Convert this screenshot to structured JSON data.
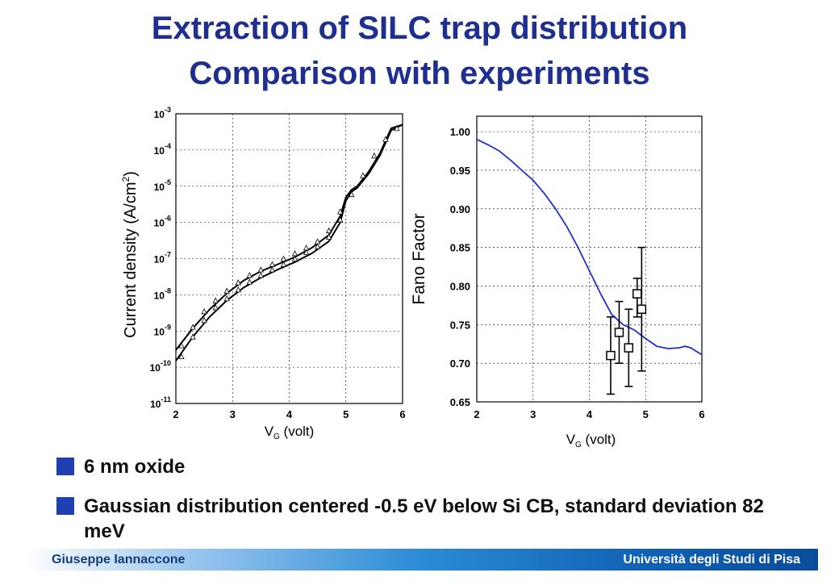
{
  "title": {
    "line1": "Extraction of SILC trap distribution",
    "line2": "Comparison with experiments"
  },
  "bullets": [
    "6 nm oxide",
    "Gaussian distribution centered -0.5 eV below Si CB, standard deviation 82 meV"
  ],
  "footer": {
    "author": "Giuseppe Iannaccone",
    "institution": "Università degli Studi di Pisa",
    "colors": {
      "bar_start": "#ffffff",
      "bar_end": "#0a4c9b"
    }
  },
  "colors": {
    "title": "#1f2f8f",
    "bullet": "#1f3fb3",
    "fano_curve": "#1f2fd0"
  },
  "chart_data": [
    {
      "type": "line",
      "xlabel": "V_G (volt)",
      "ylabel": "Current density (A/cm²)",
      "xlim": [
        2,
        6
      ],
      "ylim": [
        1e-11,
        0.001
      ],
      "yscale": "log",
      "x_ticks": [
        "2",
        "3",
        "4",
        "5",
        "6"
      ],
      "y_ticks": [
        {
          "base": "10",
          "exp": "-3",
          "value": 0.001
        },
        {
          "base": "10",
          "exp": "-4",
          "value": 0.0001
        },
        {
          "base": "10",
          "exp": "-5",
          "value": 1e-05
        },
        {
          "base": "10",
          "exp": "-6",
          "value": 1e-06
        },
        {
          "base": "10",
          "exp": "-7",
          "value": 1e-07
        },
        {
          "base": "10",
          "exp": "-8",
          "value": 1e-08
        },
        {
          "base": "10",
          "exp": "-9",
          "value": 1e-09
        },
        {
          "base": "10",
          "exp": "-10",
          "value": 1e-10
        },
        {
          "base": "10",
          "exp": "-11",
          "value": 1e-11
        }
      ],
      "series": [
        {
          "style": "solid",
          "x": [
            2.0,
            2.3,
            2.6,
            2.9,
            3.2,
            3.5,
            3.8,
            4.1,
            4.4,
            4.7,
            4.9,
            5.0,
            5.1,
            5.2,
            5.4,
            5.6,
            5.8,
            6.0
          ],
          "y": [
            3e-10,
            1.2e-09,
            4e-09,
            1.1e-08,
            2.5e-08,
            4.5e-08,
            7e-08,
            1.1e-07,
            2e-07,
            4.5e-07,
            1.5e-06,
            5e-06,
            8e-06,
            1e-05,
            2.5e-05,
            8e-05,
            0.0004,
            0.0005
          ]
        },
        {
          "style": "solid",
          "x": [
            2.0,
            2.3,
            2.6,
            2.9,
            3.2,
            3.5,
            3.8,
            4.1,
            4.4,
            4.7,
            4.9,
            5.0,
            5.1,
            5.2,
            5.4,
            5.6,
            5.8,
            6.0
          ],
          "y": [
            1.5e-10,
            7e-10,
            2.5e-09,
            7e-09,
            1.6e-08,
            3e-08,
            5e-08,
            8e-08,
            1.4e-07,
            3e-07,
            1e-06,
            4e-06,
            7e-06,
            9e-06,
            2.2e-05,
            7e-05,
            0.00035,
            0.0005
          ]
        },
        {
          "style": "triangle",
          "x": [
            2.1,
            2.3,
            2.5,
            2.7,
            2.9,
            3.1,
            3.3,
            3.5,
            3.7,
            3.9,
            4.1,
            4.3,
            4.5,
            4.7,
            4.9,
            5.1,
            5.3,
            5.5,
            5.7,
            5.9
          ],
          "y": [
            4e-10,
            1.3e-09,
            3.5e-09,
            7e-09,
            1.3e-08,
            2.2e-08,
            3.5e-08,
            5e-08,
            7e-08,
            1e-07,
            1.4e-07,
            2e-07,
            3e-07,
            6e-07,
            2e-06,
            6e-06,
            2e-05,
            7e-05,
            0.0002,
            0.0004
          ]
        },
        {
          "style": "triangle",
          "x": [
            2.1,
            2.3,
            2.5,
            2.7,
            2.9,
            3.1,
            3.3,
            3.5,
            3.7,
            3.9,
            4.1,
            4.3,
            4.5,
            4.7,
            4.9
          ],
          "y": [
            2e-10,
            7e-10,
            2e-09,
            4.5e-09,
            8e-09,
            1.4e-08,
            2.3e-08,
            3.5e-08,
            5e-08,
            7e-08,
            1e-07,
            1.5e-07,
            2.2e-07,
            4e-07,
            1.2e-06
          ]
        }
      ]
    },
    {
      "type": "line",
      "xlabel": "V_G (volt)",
      "ylabel": "Fano Factor",
      "xlim": [
        2,
        6
      ],
      "ylim": [
        0.65,
        1.02
      ],
      "x_ticks": [
        "2",
        "3",
        "4",
        "5",
        "6"
      ],
      "y_ticks": [
        "0.65",
        "0.70",
        "0.75",
        "0.80",
        "0.85",
        "0.90",
        "0.95",
        "1.00"
      ],
      "curve": {
        "x": [
          2.0,
          2.2,
          2.4,
          2.6,
          2.8,
          3.0,
          3.2,
          3.4,
          3.6,
          3.8,
          4.0,
          4.2,
          4.4,
          4.6,
          4.8,
          5.0,
          5.2,
          5.4,
          5.6,
          5.7,
          5.8,
          6.0
        ],
        "y": [
          0.99,
          0.983,
          0.975,
          0.963,
          0.95,
          0.937,
          0.92,
          0.9,
          0.877,
          0.85,
          0.82,
          0.79,
          0.763,
          0.75,
          0.743,
          0.732,
          0.722,
          0.719,
          0.72,
          0.722,
          0.72,
          0.711
        ]
      },
      "points": {
        "x": [
          4.38,
          4.53,
          4.7,
          4.85,
          4.93
        ],
        "y": [
          0.71,
          0.74,
          0.72,
          0.79,
          0.77
        ],
        "err_low": [
          0.05,
          0.04,
          0.05,
          0.03,
          0.08
        ],
        "err_high": [
          0.05,
          0.04,
          0.05,
          0.02,
          0.08
        ]
      }
    }
  ]
}
